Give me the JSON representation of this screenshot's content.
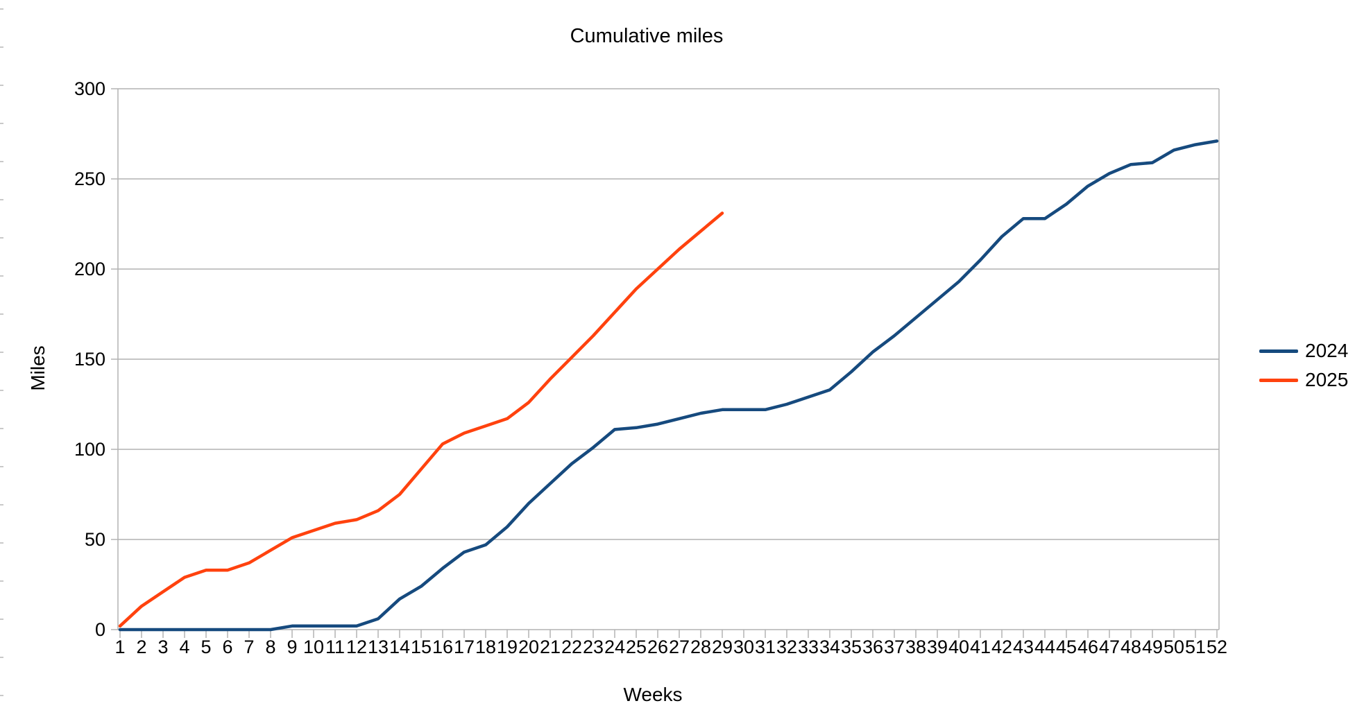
{
  "title": "Cumulative miles",
  "axes": {
    "x_title": "Weeks",
    "y_title": "Miles"
  },
  "legend": {
    "position": "right",
    "entries": [
      "2024",
      "2025"
    ]
  },
  "colors": {
    "series_2024": "#164a7e",
    "series_2025": "#ff420e",
    "grid": "#b2b2b2",
    "axis": "#b2b2b2",
    "text": "#000000",
    "background": "#ffffff"
  },
  "chart_data": {
    "type": "line",
    "title": "Cumulative miles",
    "xlabel": "Weeks",
    "ylabel": "Miles",
    "ylim": [
      0,
      300
    ],
    "y_ticks": [
      0,
      50,
      100,
      150,
      200,
      250,
      300
    ],
    "grid": true,
    "legend_position": "right",
    "x": [
      1,
      2,
      3,
      4,
      5,
      6,
      7,
      8,
      9,
      10,
      11,
      12,
      13,
      14,
      15,
      16,
      17,
      18,
      19,
      20,
      21,
      22,
      23,
      24,
      25,
      26,
      27,
      28,
      29,
      30,
      31,
      32,
      33,
      34,
      35,
      36,
      37,
      38,
      39,
      40,
      41,
      42,
      43,
      44,
      45,
      46,
      47,
      48,
      49,
      50,
      51,
      52
    ],
    "series": [
      {
        "name": "2024",
        "color": "#164a7e",
        "values": [
          0,
          0,
          0,
          0,
          0,
          0,
          0,
          0,
          2,
          2,
          2,
          2,
          6,
          17,
          24,
          34,
          43,
          47,
          57,
          70,
          81,
          92,
          101,
          111,
          112,
          114,
          117,
          120,
          122,
          122,
          122,
          125,
          129,
          133,
          143,
          154,
          163,
          173,
          183,
          193,
          205,
          218,
          228,
          228,
          236,
          246,
          253,
          258,
          259,
          266,
          269,
          271
        ]
      },
      {
        "name": "2025",
        "color": "#ff420e",
        "values": [
          2,
          13,
          21,
          29,
          33,
          33,
          37,
          44,
          51,
          55,
          59,
          61,
          66,
          75,
          89,
          103,
          109,
          113,
          117,
          126,
          139,
          151,
          163,
          176,
          189,
          200,
          211,
          221,
          231
        ]
      }
    ]
  }
}
